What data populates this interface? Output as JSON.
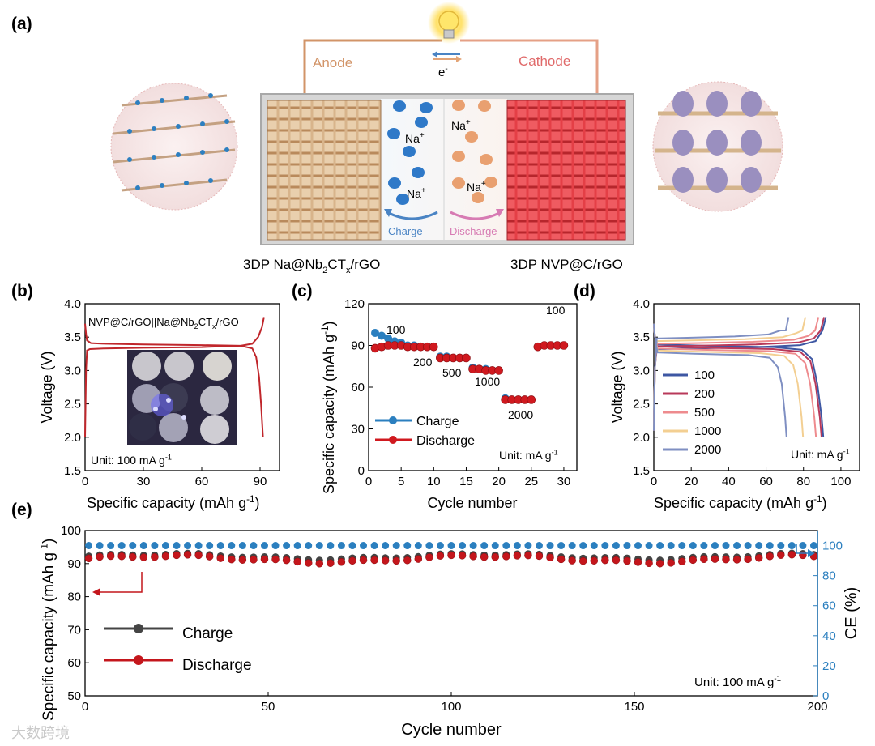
{
  "panel_labels": {
    "a": "(a)",
    "b": "(b)",
    "c": "(c)",
    "d": "(d)",
    "e": "(e)"
  },
  "schematic": {
    "anode": "Anode",
    "cathode": "Cathode",
    "electron": "e",
    "electron_sup": "-",
    "ion": "Na",
    "ion_sup": "+",
    "charge": "Charge",
    "discharge": "Discharge",
    "anode_caption": {
      "p1": "3DP Na@Nb",
      "s1": "2",
      "p2": "CT",
      "s2": "x",
      "p3": "/rGO"
    },
    "cathode_caption": "3DP NVP@C/rGO",
    "colors": {
      "anode": "#e6c7a1",
      "cathode": "#e8474f",
      "anode_wire": "#d29468",
      "cathode_text": "#e06a6a",
      "charge": "#4a84c4",
      "discharge": "#d77bb3"
    }
  },
  "chart_data": [
    {
      "id": "b",
      "type": "line",
      "title": {
        "p1": "NVP@C/rGO||Na@Nb",
        "s1": "2",
        "p2": "CT",
        "s2": "x",
        "p3": "/rGO"
      },
      "xlabel": {
        "main": "Specific capacity (mAh g",
        "sup": "-1",
        "end": ")"
      },
      "ylabel": "Voltage (V)",
      "xlim": [
        0,
        100
      ],
      "ylim": [
        1.5,
        4.0
      ],
      "xticks": [
        "0",
        "30",
        "60",
        "90"
      ],
      "yticks": [
        "1.5",
        "2.0",
        "2.5",
        "3.0",
        "3.5",
        "4.0"
      ],
      "unit": {
        "main": "Unit: 100 mA g",
        "sup": "-1"
      },
      "color": "#c0262b",
      "series": [
        {
          "name": "charge",
          "points": [
            [
              0,
              2.0
            ],
            [
              0.5,
              3.0
            ],
            [
              1,
              3.3
            ],
            [
              2.5,
              3.32
            ],
            [
              10,
              3.33
            ],
            [
              30,
              3.34
            ],
            [
              60,
              3.35
            ],
            [
              80,
              3.37
            ],
            [
              86,
              3.4
            ],
            [
              89,
              3.5
            ],
            [
              91,
              3.65
            ],
            [
              92,
              3.8
            ]
          ]
        },
        {
          "name": "discharge",
          "points": [
            [
              0,
              3.7
            ],
            [
              0.5,
              3.55
            ],
            [
              1,
              3.45
            ],
            [
              3,
              3.41
            ],
            [
              10,
              3.4
            ],
            [
              30,
              3.39
            ],
            [
              60,
              3.38
            ],
            [
              80,
              3.37
            ],
            [
              86,
              3.33
            ],
            [
              88,
              3.2
            ],
            [
              89.5,
              2.9
            ],
            [
              90.5,
              2.5
            ],
            [
              91.5,
              2.0
            ]
          ]
        }
      ]
    },
    {
      "id": "c",
      "type": "scatter",
      "xlabel": "Cycle number",
      "ylabel": {
        "main": "Specific capacity (mAh g",
        "sup": "-1",
        "end": ")"
      },
      "xlim": [
        0,
        32
      ],
      "ylim": [
        0,
        120
      ],
      "xticks": [
        "0",
        "5",
        "10",
        "15",
        "20",
        "25",
        "30"
      ],
      "yticks": [
        "0",
        "30",
        "60",
        "90",
        "120"
      ],
      "legend": [
        "Charge",
        "Discharge"
      ],
      "unit": {
        "main": "Unit: mA g",
        "sup": "-1"
      },
      "rate_labels": [
        "100",
        "200",
        "500",
        "1000",
        "2000",
        "100"
      ],
      "colors": {
        "charge": "#2b7fbf",
        "discharge": "#d0191f"
      },
      "cycles": [
        1,
        2,
        3,
        4,
        5,
        6,
        7,
        8,
        9,
        10,
        11,
        12,
        13,
        14,
        15,
        16,
        17,
        18,
        19,
        20,
        21,
        22,
        23,
        24,
        25,
        26,
        27,
        28,
        29,
        30
      ],
      "charge": [
        99,
        97,
        95,
        93,
        92,
        90,
        90,
        89,
        89,
        89,
        82,
        82,
        81,
        81,
        81,
        74,
        73,
        73,
        72,
        72,
        52,
        51,
        51,
        51,
        51,
        89,
        90,
        90,
        90,
        90
      ],
      "discharge": [
        88,
        89,
        90,
        90,
        90,
        89,
        89,
        89,
        89,
        89,
        81,
        81,
        81,
        81,
        81,
        73,
        73,
        72,
        72,
        72,
        51,
        51,
        51,
        51,
        51,
        89,
        90,
        90,
        90,
        90
      ]
    },
    {
      "id": "d",
      "type": "line",
      "xlabel": {
        "main": "Specific capacity (mAh g",
        "sup": "-1",
        "end": ")"
      },
      "ylabel": "Voltage (V)",
      "xlim": [
        0,
        110
      ],
      "ylim": [
        1.5,
        4.0
      ],
      "xticks": [
        "0",
        "20",
        "40",
        "60",
        "80",
        "100"
      ],
      "yticks": [
        "1.5",
        "2.0",
        "2.5",
        "3.0",
        "3.5",
        "4.0"
      ],
      "unit": {
        "main": "Unit: mA g",
        "sup": "-1"
      },
      "series": [
        {
          "name": "100",
          "color": "#3e57a3",
          "cap": 92
        },
        {
          "name": "200",
          "color": "#b8395a",
          "cap": 91
        },
        {
          "name": "500",
          "color": "#ee8b8e",
          "cap": 88
        },
        {
          "name": "1000",
          "color": "#f3cf92",
          "cap": 81
        },
        {
          "name": "2000",
          "color": "#7f8fc2",
          "cap": 72
        }
      ]
    },
    {
      "id": "e",
      "type": "scatter",
      "xlabel": "Cycle number",
      "ylabel": {
        "main": "Specific capacity (mAh g",
        "sup": "-1",
        "end": ")"
      },
      "ylabel_right": "CE (%)",
      "xlim": [
        0,
        200
      ],
      "ylim": [
        50,
        100
      ],
      "ylim_right": [
        0,
        110
      ],
      "xticks": [
        "0",
        "50",
        "100",
        "150",
        "200"
      ],
      "yticks": [
        "50",
        "60",
        "70",
        "80",
        "90",
        "100"
      ],
      "yticks_right": [
        "0",
        "20",
        "40",
        "60",
        "80",
        "100"
      ],
      "legend": [
        "Charge",
        "Discharge"
      ],
      "unit": {
        "main": "Unit: 100 mA g",
        "sup": "-1"
      },
      "colors": {
        "charge": "#444444",
        "discharge": "#c4161c",
        "ce": "#2b7fbf"
      },
      "cycles_step": 3,
      "charge_capacity_range": [
        91.0,
        93.2
      ],
      "discharge_capacity_range": [
        90.0,
        92.8
      ],
      "ce_value": 100
    }
  ],
  "watermark": "大数跨境"
}
